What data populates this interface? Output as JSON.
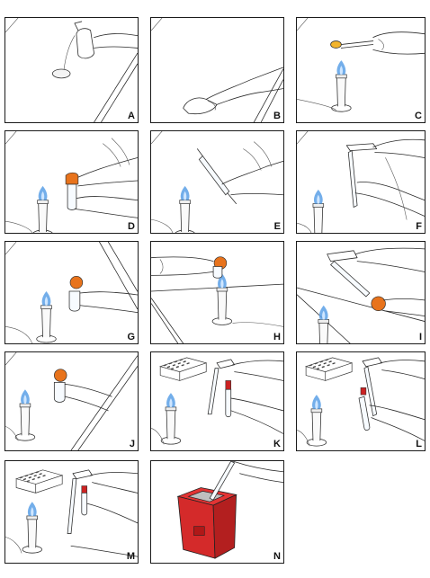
{
  "panels": [
    {
      "label": "A"
    },
    {
      "label": "B"
    },
    {
      "label": "C"
    },
    {
      "label": "D"
    },
    {
      "label": "E"
    },
    {
      "label": "F"
    },
    {
      "label": "G"
    },
    {
      "label": "H"
    },
    {
      "label": "I"
    },
    {
      "label": "J"
    },
    {
      "label": "K"
    },
    {
      "label": "L"
    },
    {
      "label": "M"
    },
    {
      "label": "N"
    }
  ],
  "colors": {
    "flame": "#5aa0e6",
    "culture_cap": "#e8731c",
    "sharps_bin": "#d42a2a",
    "tube_cap_red": "#cc2222",
    "outline": "#1a1a1a"
  }
}
